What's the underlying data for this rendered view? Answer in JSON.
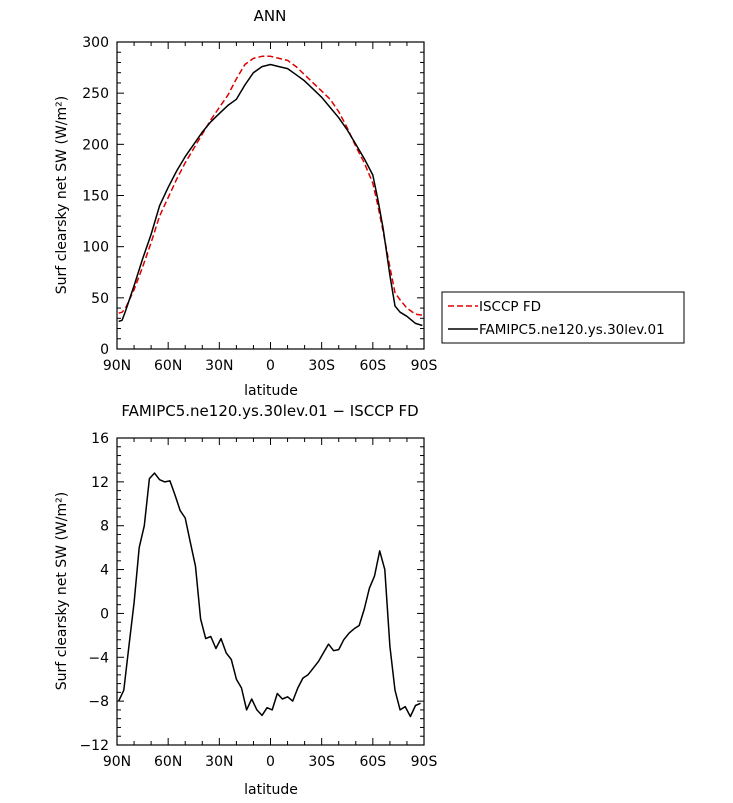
{
  "chart_data": [
    {
      "type": "line",
      "title": "ANN",
      "xlabel": "latitude",
      "ylabel": "Surf clearsky net SW (W/m²)",
      "xlim": [
        90,
        -90
      ],
      "ylim": [
        0,
        300
      ],
      "xtick_labels": [
        "90N",
        "60N",
        "30N",
        "0",
        "30S",
        "60S",
        "90S"
      ],
      "xtick_values": [
        90,
        60,
        30,
        0,
        -30,
        -60,
        -90
      ],
      "ytick_labels": [
        "0",
        "50",
        "100",
        "150",
        "200",
        "250",
        "300"
      ],
      "ytick_values": [
        0,
        50,
        100,
        150,
        200,
        250,
        300
      ],
      "legend_position": "right",
      "series": [
        {
          "name": "ISCCP FD",
          "color": "#e00000",
          "style": "dashed",
          "x": [
            89,
            87,
            85,
            80,
            75,
            70,
            65,
            60,
            55,
            50,
            45,
            40,
            35,
            30,
            25,
            20,
            15,
            10,
            5,
            0,
            -5,
            -10,
            -15,
            -20,
            -25,
            -30,
            -35,
            -40,
            -45,
            -50,
            -55,
            -60,
            -63,
            -66,
            -70,
            -73,
            -76,
            -80,
            -85,
            -89
          ],
          "y": [
            35,
            36,
            40,
            58,
            80,
            104,
            130,
            148,
            166,
            182,
            196,
            210,
            224,
            236,
            248,
            264,
            278,
            284,
            286,
            286,
            284,
            282,
            276,
            268,
            260,
            252,
            244,
            232,
            216,
            198,
            182,
            162,
            140,
            115,
            80,
            55,
            48,
            40,
            34,
            33
          ]
        },
        {
          "name": "FAMIPC5.ne120.ys.30lev.01",
          "color": "#000000",
          "style": "solid",
          "x": [
            89,
            87,
            85,
            80,
            75,
            70,
            65,
            60,
            55,
            50,
            45,
            40,
            35,
            30,
            25,
            20,
            15,
            10,
            5,
            0,
            -5,
            -10,
            -15,
            -20,
            -25,
            -30,
            -35,
            -40,
            -45,
            -50,
            -55,
            -60,
            -63,
            -66,
            -70,
            -73,
            -76,
            -80,
            -85,
            -89
          ],
          "y": [
            27,
            28,
            37,
            62,
            88,
            112,
            140,
            158,
            174,
            188,
            200,
            212,
            222,
            230,
            238,
            244,
            258,
            270,
            276,
            278,
            276,
            274,
            268,
            262,
            254,
            246,
            236,
            226,
            214,
            200,
            186,
            170,
            146,
            118,
            72,
            42,
            36,
            32,
            25,
            23
          ]
        }
      ]
    },
    {
      "type": "line",
      "title": "FAMIPC5.ne120.ys.30lev.01 − ISCCP FD",
      "xlabel": "latitude",
      "ylabel": "Surf clearsky net SW (W/m²)",
      "xlim": [
        90,
        -90
      ],
      "ylim": [
        -12,
        16
      ],
      "xtick_labels": [
        "90N",
        "60N",
        "30N",
        "0",
        "30S",
        "60S",
        "90S"
      ],
      "xtick_values": [
        90,
        60,
        30,
        0,
        -30,
        -60,
        -90
      ],
      "ytick_labels": [
        "−12",
        "−8",
        "−4",
        "0",
        "4",
        "8",
        "12",
        "16"
      ],
      "ytick_values": [
        -12,
        -8,
        -4,
        0,
        4,
        8,
        12,
        16
      ],
      "series": [
        {
          "color": "#000000",
          "style": "solid",
          "x": [
            89,
            86,
            83,
            80,
            77,
            74,
            71,
            68,
            65,
            62,
            59,
            56,
            53,
            50,
            47,
            44,
            41,
            38,
            35,
            32,
            29,
            26,
            23,
            20,
            17,
            14,
            11,
            8,
            5,
            2,
            -1,
            -4,
            -7,
            -10,
            -13,
            -16,
            -19,
            -22,
            -25,
            -28,
            -31,
            -34,
            -37,
            -40,
            -43,
            -46,
            -49,
            -52,
            -55,
            -58,
            -61,
            -64,
            -67,
            -70,
            -73,
            -76,
            -79,
            -82,
            -85,
            -88
          ],
          "y": [
            -8,
            -7,
            -3,
            1,
            6,
            8,
            12.3,
            12.8,
            12.2,
            12.0,
            12.1,
            10.8,
            9.4,
            8.7,
            6.5,
            4.3,
            -0.5,
            -2.3,
            -2.1,
            -3.2,
            -2.3,
            -3.6,
            -4.2,
            -6.0,
            -6.8,
            -8.8,
            -7.8,
            -8.8,
            -9.3,
            -8.6,
            -8.8,
            -7.3,
            -7.8,
            -7.6,
            -8.0,
            -6.8,
            -5.9,
            -5.6,
            -5.0,
            -4.4,
            -3.6,
            -2.8,
            -3.4,
            -3.3,
            -2.4,
            -1.8,
            -1.4,
            -1.1,
            0.4,
            2.3,
            3.4,
            5.7,
            4.0,
            -3.0,
            -7.0,
            -8.8,
            -8.5,
            -9.4,
            -8.4,
            -8.2
          ]
        }
      ]
    }
  ]
}
